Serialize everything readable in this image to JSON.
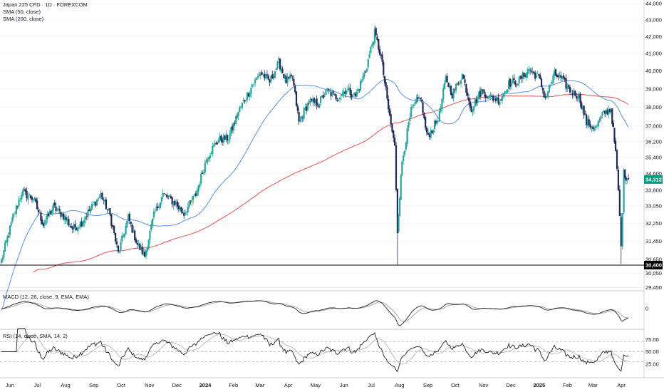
{
  "header": {
    "title": "Japan 225 CFD · 1D · FOREXCOM",
    "sma50_label": "SMA (50, close)",
    "sma200_label": "SMA (200, close)"
  },
  "macd_pane": {
    "label": "MACD (12, 26, close, 9, EMA, EMA)",
    "ticks": [
      "0"
    ]
  },
  "rsi_pane": {
    "label": "RSI (14, close, SMA, 14, 2)",
    "ticks": [
      "75.00",
      "50.00",
      "25.00"
    ]
  },
  "price_axis": {
    "ticks": [
      "44,000",
      "43,000",
      "42,000",
      "41,000",
      "40,000",
      "39,000",
      "38,000",
      "37,000",
      "36,200",
      "35,400",
      "34,600",
      "33,800",
      "33,050",
      "32,250",
      "31,450",
      "30,650",
      "30,050",
      "29,450"
    ],
    "last_price_tag": "34,312",
    "level_tag": "30,400"
  },
  "time_axis": {
    "ticks": [
      "Jun",
      "Jul",
      "Aug",
      "Sep",
      "Oct",
      "Nov",
      "Dec",
      "2024",
      "Feb",
      "Mar",
      "Apr",
      "May",
      "Jun",
      "Jul",
      "Aug",
      "Sep",
      "Oct",
      "Nov",
      "Dec",
      "2025",
      "Feb",
      "Mar",
      "Apr"
    ],
    "bold_ticks": [
      "2024",
      "2025"
    ]
  },
  "colors": {
    "up": "#26a69a",
    "down": "#1e2a5a",
    "sma50": "#5b8ee6",
    "sma200": "#e85151",
    "tag_green": "#089981",
    "tag_black": "#000000",
    "grid": "#e8e8e8"
  },
  "chart_data": [
    {
      "type": "candlestick",
      "title": "Japan 225 CFD · 1D · FOREXCOM",
      "series": [
        {
          "name": "Japan 225 CFD",
          "x": [
            "2023-06",
            "2023-07",
            "2023-08",
            "2023-09",
            "2023-10",
            "2023-11",
            "2023-12",
            "2024-01",
            "2024-02",
            "2024-03",
            "2024-04",
            "2024-05",
            "2024-06",
            "2024-07",
            "2024-08",
            "2024-09",
            "2024-10",
            "2024-11",
            "2024-12",
            "2025-01",
            "2025-02",
            "2025-03",
            "2025-04"
          ]
        },
        {
          "name": "SMA (50, close)"
        },
        {
          "name": "SMA (200, close)"
        }
      ],
      "keypoints": [
        [
          "2023-05-29",
          30600
        ],
        [
          "2023-06-10",
          32400
        ],
        [
          "2023-06-20",
          33700
        ],
        [
          "2023-07-03",
          33400
        ],
        [
          "2023-07-14",
          32200
        ],
        [
          "2023-07-25",
          33000
        ],
        [
          "2023-08-05",
          32600
        ],
        [
          "2023-08-15",
          32000
        ],
        [
          "2023-08-25",
          32300
        ],
        [
          "2023-09-05",
          33000
        ],
        [
          "2023-09-15",
          33600
        ],
        [
          "2023-09-25",
          32600
        ],
        [
          "2023-10-04",
          30900
        ],
        [
          "2023-10-15",
          32500
        ],
        [
          "2023-10-25",
          31300
        ],
        [
          "2023-11-02",
          30800
        ],
        [
          "2023-11-12",
          32600
        ],
        [
          "2023-11-22",
          33600
        ],
        [
          "2023-12-05",
          33200
        ],
        [
          "2023-12-15",
          32700
        ],
        [
          "2023-12-28",
          33600
        ],
        [
          "2024-01-10",
          35500
        ],
        [
          "2024-01-22",
          36300
        ],
        [
          "2024-02-02",
          36400
        ],
        [
          "2024-02-14",
          37900
        ],
        [
          "2024-02-28",
          39200
        ],
        [
          "2024-03-08",
          39900
        ],
        [
          "2024-03-18",
          39400
        ],
        [
          "2024-03-28",
          40500
        ],
        [
          "2024-04-05",
          39400
        ],
        [
          "2024-04-12",
          39600
        ],
        [
          "2024-04-19",
          37200
        ],
        [
          "2024-04-30",
          38300
        ],
        [
          "2024-05-10",
          38200
        ],
        [
          "2024-05-20",
          38900
        ],
        [
          "2024-05-31",
          38500
        ],
        [
          "2024-06-10",
          39000
        ],
        [
          "2024-06-20",
          38600
        ],
        [
          "2024-07-01",
          40000
        ],
        [
          "2024-07-11",
          42200
        ],
        [
          "2024-07-18",
          40800
        ],
        [
          "2024-07-26",
          37900
        ],
        [
          "2024-08-02",
          35900
        ],
        [
          "2024-08-05",
          31900
        ],
        [
          "2024-08-10",
          35200
        ],
        [
          "2024-08-20",
          37800
        ],
        [
          "2024-08-30",
          38600
        ],
        [
          "2024-09-06",
          36500
        ],
        [
          "2024-09-12",
          36800
        ],
        [
          "2024-09-20",
          37600
        ],
        [
          "2024-09-27",
          39600
        ],
        [
          "2024-10-04",
          38700
        ],
        [
          "2024-10-15",
          39800
        ],
        [
          "2024-10-25",
          37900
        ],
        [
          "2024-11-05",
          38900
        ],
        [
          "2024-11-15",
          38500
        ],
        [
          "2024-11-25",
          38400
        ],
        [
          "2024-12-05",
          39300
        ],
        [
          "2024-12-15",
          39400
        ],
        [
          "2024-12-27",
          40100
        ],
        [
          "2025-01-07",
          39600
        ],
        [
          "2025-01-14",
          38500
        ],
        [
          "2025-01-24",
          39800
        ],
        [
          "2025-01-31",
          39600
        ],
        [
          "2025-02-10",
          38900
        ],
        [
          "2025-02-20",
          38600
        ],
        [
          "2025-02-28",
          37200
        ],
        [
          "2025-03-10",
          36900
        ],
        [
          "2025-03-19",
          37700
        ],
        [
          "2025-03-27",
          37900
        ],
        [
          "2025-04-01",
          35600
        ],
        [
          "2025-04-04",
          33800
        ],
        [
          "2025-04-07",
          31200
        ],
        [
          "2025-04-10",
          34600
        ],
        [
          "2025-04-15",
          34312
        ]
      ],
      "ylim": [
        29100,
        44000
      ],
      "ylog": true
    },
    {
      "type": "line",
      "title": "MACD (12, 26, close, 9, EMA, EMA)",
      "series": [
        {
          "name": "MACD"
        },
        {
          "name": "Signal"
        }
      ]
    },
    {
      "type": "line",
      "title": "RSI (14, close, SMA, 14, 2)",
      "series": [
        {
          "name": "RSI"
        },
        {
          "name": "RSI-based MA"
        }
      ],
      "ylim": [
        0,
        100
      ],
      "levels": [
        70,
        50,
        30
      ]
    }
  ]
}
